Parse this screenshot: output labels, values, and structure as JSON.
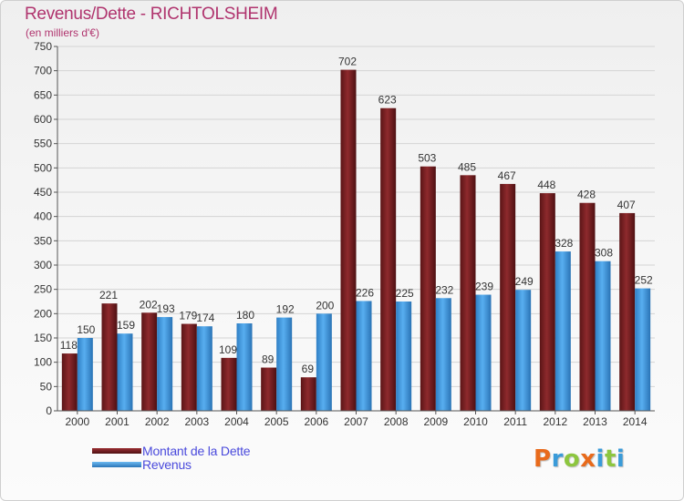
{
  "title": "Revenus/Dette - RICHTOLSHEIM",
  "subtitle": "(en milliers d'€)",
  "logo": {
    "text": "Proxiti",
    "colors": [
      "#e86a1b",
      "#3a9bd9",
      "#8dc63f",
      "#e86a1b",
      "#3a9bd9",
      "#8dc63f",
      "#3a9bd9"
    ]
  },
  "colors": {
    "dette": "#7b1f22",
    "revenus": "#3d97de",
    "axis": "#555555",
    "grid": "#d4d4d4"
  },
  "legend": [
    {
      "label": "Montant de la Dette",
      "color": "#7b1f22"
    },
    {
      "label": "Revenus",
      "color": "#3d97de"
    }
  ],
  "chart_data": {
    "type": "bar",
    "categories": [
      "2000",
      "2001",
      "2002",
      "2003",
      "2004",
      "2005",
      "2006",
      "2007",
      "2008",
      "2009",
      "2010",
      "2011",
      "2012",
      "2013",
      "2014"
    ],
    "series": [
      {
        "name": "Montant de la Dette",
        "values": [
          118,
          221,
          202,
          179,
          109,
          89,
          69,
          702,
          623,
          503,
          485,
          467,
          448,
          428,
          407
        ]
      },
      {
        "name": "Revenus",
        "values": [
          150,
          159,
          193,
          174,
          180,
          192,
          200,
          226,
          225,
          232,
          239,
          249,
          328,
          308,
          252
        ]
      }
    ],
    "yticks": [
      0,
      50,
      100,
      150,
      200,
      250,
      300,
      350,
      400,
      450,
      500,
      550,
      600,
      650,
      700,
      750
    ],
    "ylim": [
      0,
      750
    ],
    "grid": true,
    "legend_position": "bottom-left"
  }
}
